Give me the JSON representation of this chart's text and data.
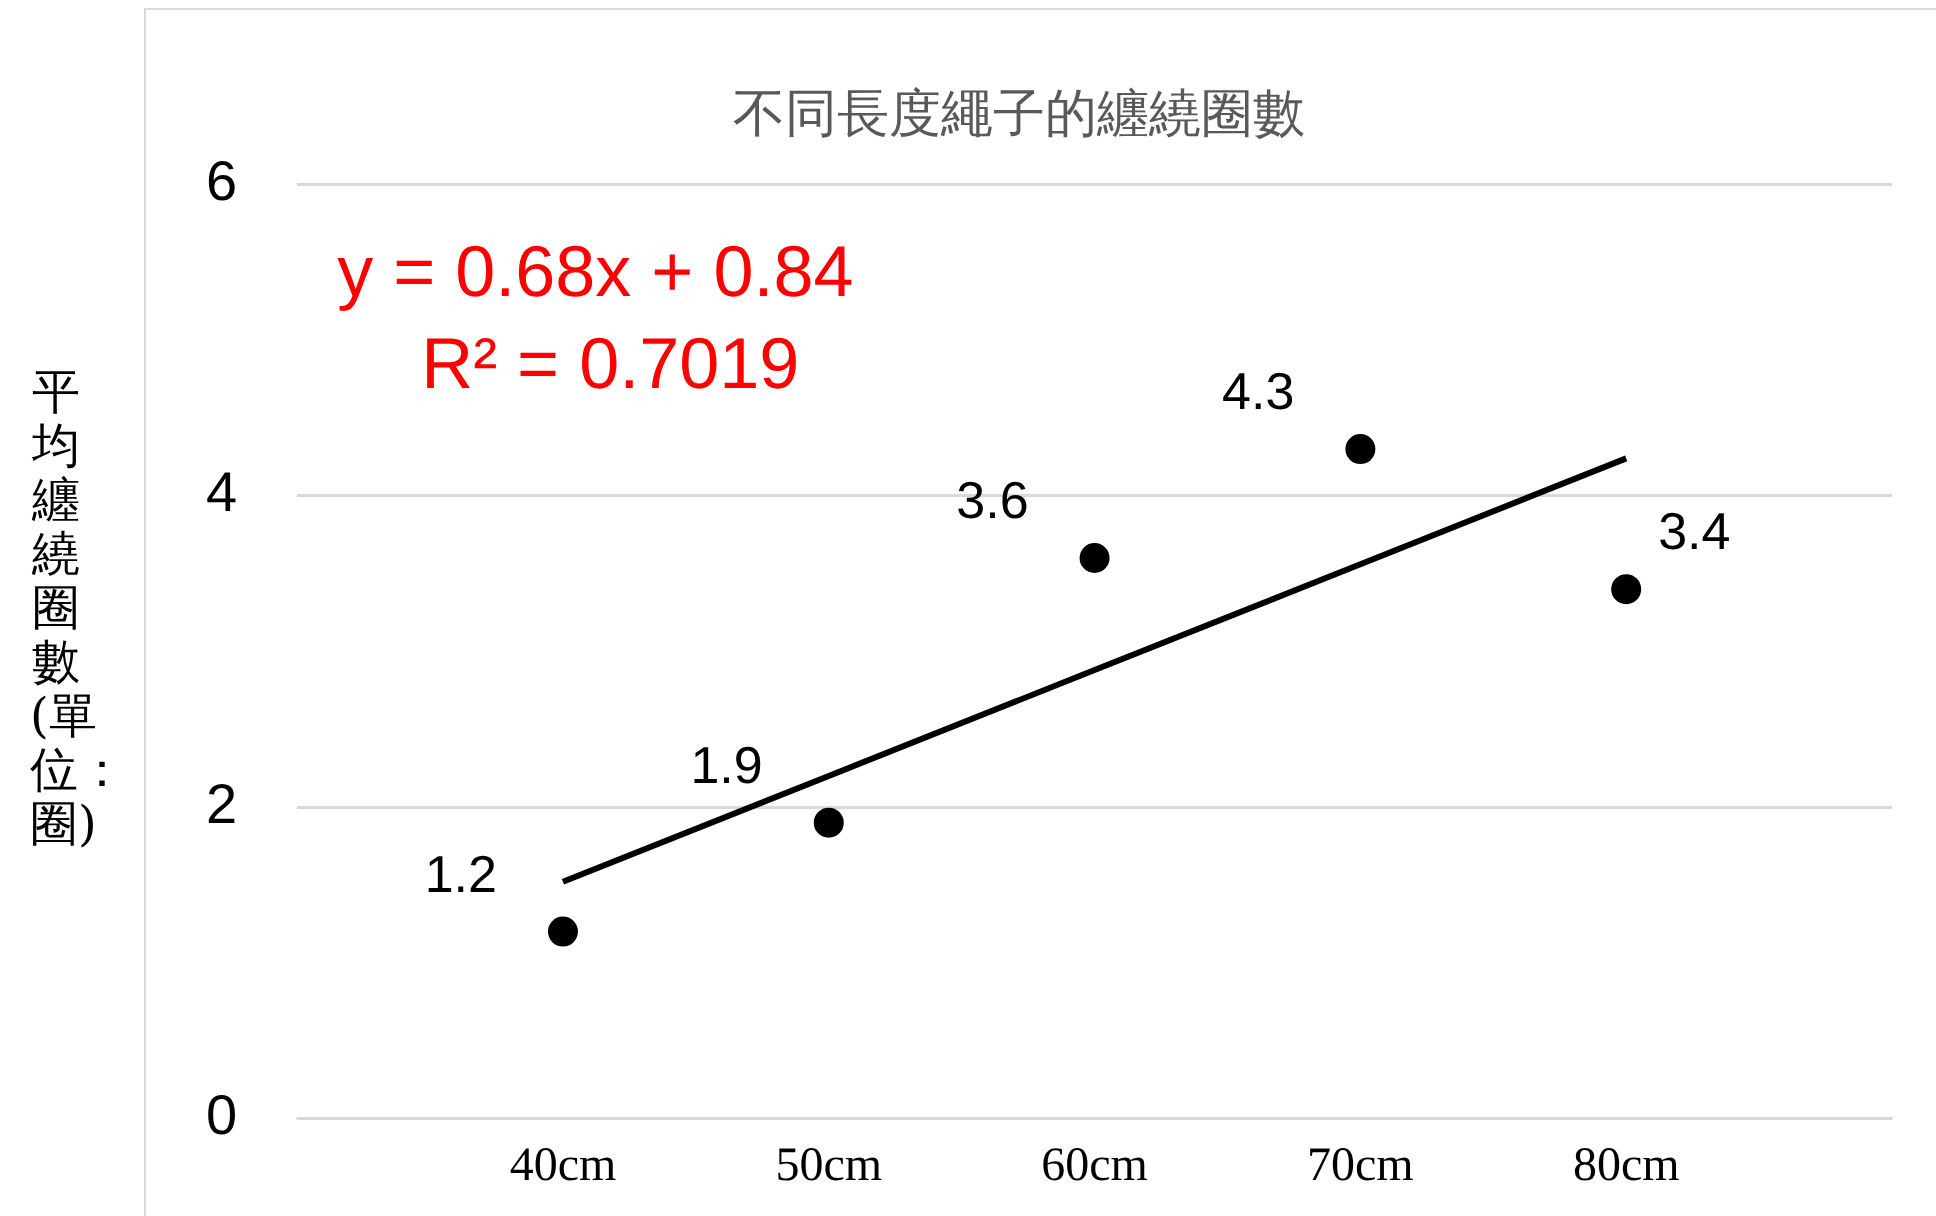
{
  "chart_data": {
    "type": "scatter",
    "title": "不同長度繩子的纏繞圈數",
    "ylabel": "平均纏繞圈數(單位：圈)",
    "categories": [
      "40cm",
      "50cm",
      "60cm",
      "70cm",
      "80cm"
    ],
    "series": [
      {
        "type": "scatter",
        "color": "#000000",
        "marker": "circle",
        "values": [
          1.2,
          1.9,
          3.6,
          4.3,
          3.4
        ],
        "value_labels": [
          "1.2",
          "1.9",
          "3.6",
          "4.3",
          "3.4"
        ]
      },
      {
        "type": "line",
        "color": "#000000",
        "marker": "none",
        "values": [
          1.52,
          2.2,
          2.88,
          3.56,
          4.24
        ]
      }
    ],
    "ylim": [
      0,
      6
    ],
    "yticks": [
      0,
      2,
      4,
      6
    ],
    "grid": "y",
    "legend": false,
    "annotations": [
      "y = 0.68x + 0.84",
      "R² = 0.7019"
    ]
  }
}
